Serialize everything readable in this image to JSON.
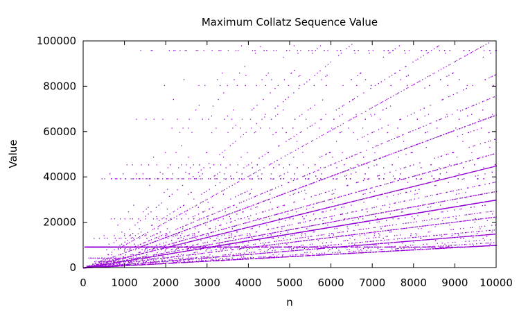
{
  "chart_data": {
    "type": "scatter",
    "title": "Maximum Collatz Sequence Value",
    "xlabel": "n",
    "ylabel": "Value",
    "xlim": [
      0,
      10000
    ],
    "ylim": [
      0,
      100000
    ],
    "xticks": [
      0,
      1000,
      2000,
      3000,
      4000,
      5000,
      6000,
      7000,
      8000,
      9000,
      10000
    ],
    "yticks": [
      0,
      20000,
      40000,
      60000,
      80000,
      100000
    ],
    "xtick_labels": [
      "0",
      "1000",
      "2000",
      "3000",
      "4000",
      "5000",
      "6000",
      "7000",
      "8000",
      "9000",
      "10000"
    ],
    "ytick_labels": [
      "0",
      "20000",
      "40000",
      "60000",
      "80000",
      "100000"
    ],
    "grid": false,
    "legend": "none",
    "point_color": "#9400d3",
    "series": [
      {
        "values_rule": "max value reached in the Collatz sequence starting at n, for n = 1 to 10000 (points above 100000 clipped)",
        "n_min": 1,
        "n_max": 10000,
        "notable_bands": [
          {
            "approx_value": 9232
          },
          {
            "approx_value": 39364
          },
          {
            "approx_value": 96000
          }
        ],
        "ray_slopes_value_per_n": [
          1.0,
          1.5,
          2.25,
          3.0,
          3.375,
          4.5,
          5.0625,
          6.75,
          7.59,
          10.125
        ]
      }
    ]
  }
}
